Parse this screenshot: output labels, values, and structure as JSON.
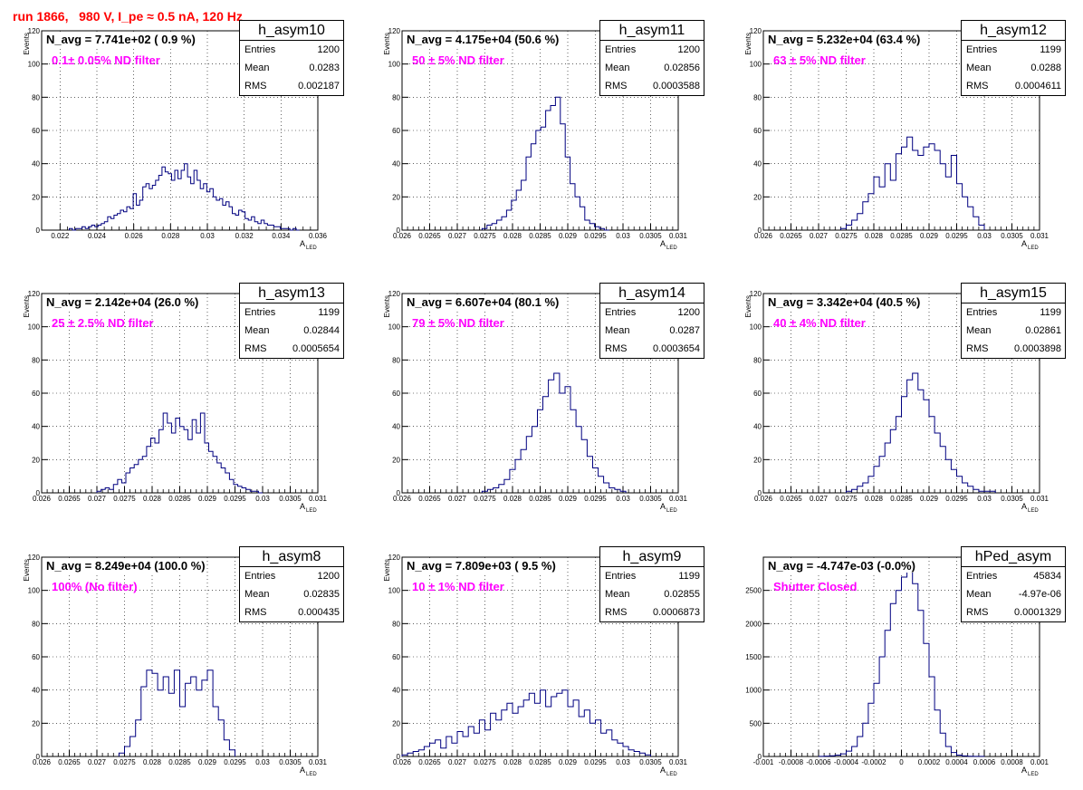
{
  "page_title": "run 1866,   980 V, I_pe ≈ 0.5 nA, 120 Hz",
  "colors": {
    "line": "#000080",
    "filter_text": "#ff00ff",
    "title_text": "#ff0000",
    "grid": "#000000"
  },
  "chart_data": [
    {
      "type": "bar",
      "hist": "h_asym10",
      "navg": "N_avg = 7.741e+02 ( 0.9 %)",
      "filter": "0.1± 0.05% ND filter",
      "entries": "1200",
      "mean": "0.0283",
      "rms": "0.002187",
      "xlim": [
        0.021,
        0.036
      ],
      "ylim": [
        0,
        120
      ],
      "xticks": [
        "0.022",
        "0.024",
        "0.026",
        "0.028",
        "0.03",
        "0.032",
        "0.034",
        "0.036"
      ],
      "yticks": [
        "20",
        "40",
        "60",
        "80",
        "100",
        "120"
      ],
      "xlabel": "A",
      "xlabel_sub": "LED",
      "ylabel": "Events",
      "bin_edges": [
        0.0225,
        0.035
      ],
      "counts": [
        1,
        0,
        1,
        1,
        2,
        1,
        2,
        3,
        2,
        3,
        4,
        5,
        8,
        7,
        9,
        10,
        12,
        11,
        14,
        13,
        22,
        15,
        18,
        26,
        28,
        25,
        27,
        30,
        33,
        38,
        35,
        34,
        30,
        36,
        31,
        36,
        40,
        32,
        28,
        36,
        30,
        25,
        28,
        23,
        25,
        20,
        18,
        19,
        15,
        17,
        14,
        10,
        9,
        12,
        11,
        7,
        6,
        8,
        5,
        4,
        6,
        4,
        3,
        3,
        2,
        2,
        1,
        1,
        1,
        0,
        1,
        0
      ]
    },
    {
      "type": "bar",
      "hist": "h_asym11",
      "navg": "N_avg = 4.175e+04 (50.6 %)",
      "filter": "50 ± 5% ND filter",
      "entries": "1200",
      "mean": "0.02856",
      "rms": "0.0003588",
      "xlim": [
        0.026,
        0.031
      ],
      "ylim": [
        0,
        120
      ],
      "xticks": [
        "0.026",
        "0.0265",
        "0.027",
        "0.0275",
        "0.028",
        "0.0285",
        "0.029",
        "0.0295",
        "0.03",
        "0.0305",
        "0.031"
      ],
      "yticks": [
        "20",
        "40",
        "60",
        "80",
        "100",
        "120"
      ],
      "xlabel": "A",
      "xlabel_sub": "LED",
      "ylabel": "Events",
      "bin_edges": [
        0.02745,
        0.02975
      ],
      "counts": [
        1,
        3,
        4,
        6,
        8,
        12,
        18,
        24,
        30,
        44,
        52,
        60,
        62,
        72,
        75,
        80,
        64,
        44,
        28,
        20,
        14,
        6,
        4,
        2,
        1,
        0
      ]
    },
    {
      "type": "bar",
      "hist": "h_asym12",
      "navg": "N_avg = 5.232e+04 (63.4 %)",
      "filter": "63 ± 5% ND filter",
      "entries": "1199",
      "mean": "0.0288",
      "rms": "0.0004611",
      "xlim": [
        0.026,
        0.031
      ],
      "ylim": [
        0,
        120
      ],
      "xticks": [
        "0.026",
        "0.0265",
        "0.027",
        "0.0275",
        "0.028",
        "0.0285",
        "0.029",
        "0.0295",
        "0.03",
        "0.0305",
        "0.031"
      ],
      "yticks": [
        "20",
        "40",
        "60",
        "80",
        "100",
        "120"
      ],
      "xlabel": "A",
      "xlabel_sub": "LED",
      "ylabel": "Events",
      "bin_edges": [
        0.0274,
        0.03
      ],
      "counts": [
        1,
        3,
        6,
        10,
        17,
        22,
        32,
        26,
        40,
        30,
        46,
        50,
        56,
        48,
        45,
        50,
        52,
        48,
        40,
        32,
        45,
        28,
        20,
        14,
        8,
        3
      ]
    },
    {
      "type": "bar",
      "hist": "h_asym13",
      "navg": "N_avg = 2.142e+04 (26.0 %)",
      "filter": "25 ± 2.5% ND filter",
      "entries": "1199",
      "mean": "0.02844",
      "rms": "0.0005654",
      "xlim": [
        0.026,
        0.031
      ],
      "ylim": [
        0,
        120
      ],
      "xticks": [
        "0.026",
        "0.0265",
        "0.027",
        "0.0275",
        "0.028",
        "0.0285",
        "0.029",
        "0.0295",
        "0.03",
        "0.0305",
        "0.031"
      ],
      "yticks": [
        "20",
        "40",
        "60",
        "80",
        "100",
        "120"
      ],
      "xlabel": "A",
      "xlabel_sub": "LED",
      "ylabel": "Events",
      "bin_edges": [
        0.027,
        0.03
      ],
      "counts": [
        1,
        2,
        3,
        2,
        5,
        8,
        6,
        12,
        15,
        17,
        20,
        22,
        28,
        33,
        30,
        38,
        48,
        42,
        36,
        45,
        40,
        38,
        32,
        44,
        36,
        48,
        30,
        25,
        22,
        18,
        15,
        12,
        8,
        5,
        4,
        3,
        2,
        1,
        1,
        0
      ]
    },
    {
      "type": "bar",
      "hist": "h_asym14",
      "navg": "N_avg = 6.607e+04 (80.1 %)",
      "filter": "79 ± 5% ND filter",
      "entries": "1200",
      "mean": "0.0287",
      "rms": "0.0003654",
      "xlim": [
        0.026,
        0.031
      ],
      "ylim": [
        0,
        120
      ],
      "xticks": [
        "0.026",
        "0.0265",
        "0.027",
        "0.0275",
        "0.028",
        "0.0285",
        "0.029",
        "0.0295",
        "0.03",
        "0.0305",
        "0.031"
      ],
      "yticks": [
        "20",
        "40",
        "60",
        "80",
        "100",
        "120"
      ],
      "xlabel": "A",
      "xlabel_sub": "LED",
      "ylabel": "Events",
      "bin_edges": [
        0.02745,
        0.03005
      ],
      "counts": [
        1,
        2,
        3,
        5,
        8,
        14,
        20,
        26,
        34,
        40,
        50,
        58,
        68,
        72,
        60,
        64,
        50,
        40,
        32,
        22,
        15,
        10,
        6,
        3,
        2,
        1
      ]
    },
    {
      "type": "bar",
      "hist": "h_asym15",
      "navg": "N_avg = 3.342e+04 (40.5 %)",
      "filter": "40 ± 4% ND filter",
      "entries": "1199",
      "mean": "0.02861",
      "rms": "0.0003898",
      "xlim": [
        0.026,
        0.031
      ],
      "ylim": [
        0,
        120
      ],
      "xticks": [
        "0.026",
        "0.0265",
        "0.027",
        "0.0275",
        "0.028",
        "0.0285",
        "0.029",
        "0.0295",
        "0.03",
        "0.0305",
        "0.031"
      ],
      "yticks": [
        "20",
        "40",
        "60",
        "80",
        "100",
        "120"
      ],
      "xlabel": "A",
      "xlabel_sub": "LED",
      "ylabel": "Events",
      "bin_edges": [
        0.0275,
        0.0302
      ],
      "counts": [
        1,
        2,
        4,
        6,
        10,
        16,
        22,
        30,
        38,
        46,
        58,
        68,
        72,
        62,
        56,
        46,
        36,
        28,
        20,
        14,
        10,
        6,
        4,
        2,
        1,
        1,
        1
      ]
    },
    {
      "type": "bar",
      "hist": "h_asym8",
      "navg": "N_avg = 8.249e+04 (100.0 %)",
      "filter": "100% (No filter)",
      "entries": "1200",
      "mean": "0.02835",
      "rms": "0.000435",
      "xlim": [
        0.026,
        0.031
      ],
      "ylim": [
        0,
        120
      ],
      "xticks": [
        "0.026",
        "0.0265",
        "0.027",
        "0.0275",
        "0.028",
        "0.0285",
        "0.029",
        "0.0295",
        "0.03",
        "0.0305",
        "0.031"
      ],
      "yticks": [
        "20",
        "40",
        "60",
        "80",
        "100",
        "120"
      ],
      "xlabel": "A",
      "xlabel_sub": "LED",
      "ylabel": "Events",
      "bin_edges": [
        0.0274,
        0.0295
      ],
      "counts": [
        2,
        6,
        12,
        22,
        42,
        52,
        50,
        40,
        48,
        38,
        52,
        30,
        44,
        48,
        40,
        46,
        52,
        30,
        22,
        10,
        4
      ]
    },
    {
      "type": "bar",
      "hist": "h_asym9",
      "navg": "N_avg = 7.809e+03 ( 9.5 %)",
      "filter": "10 ± 1% ND filter",
      "entries": "1199",
      "mean": "0.02855",
      "rms": "0.0006873",
      "xlim": [
        0.026,
        0.031
      ],
      "ylim": [
        0,
        120
      ],
      "xticks": [
        "0.026",
        "0.0265",
        "0.027",
        "0.0275",
        "0.028",
        "0.0285",
        "0.029",
        "0.0295",
        "0.03",
        "0.0305",
        "0.031"
      ],
      "yticks": [
        "20",
        "40",
        "60",
        "80",
        "100",
        "120"
      ],
      "xlabel": "A",
      "xlabel_sub": "LED",
      "ylabel": "Events",
      "bin_edges": [
        0.026,
        0.0305
      ],
      "counts": [
        1,
        2,
        3,
        4,
        6,
        8,
        10,
        5,
        12,
        8,
        15,
        12,
        18,
        14,
        22,
        16,
        26,
        22,
        28,
        32,
        26,
        30,
        34,
        38,
        32,
        40,
        30,
        36,
        38,
        40,
        30,
        34,
        24,
        28,
        20,
        22,
        14,
        16,
        10,
        8,
        6,
        4,
        3,
        2,
        1
      ]
    },
    {
      "type": "bar",
      "hist": "hPed_asym",
      "navg": "N_avg = -4.747e-03 (-0.0%)",
      "filter": "Shutter Closed",
      "entries": "45834",
      "mean": "-4.97e-06",
      "rms": "0.0001329",
      "xlim": [
        -0.001,
        0.001
      ],
      "ylim": [
        0,
        3000
      ],
      "xticks": [
        "-0.001",
        "-0.0008",
        "-0.0006",
        "-0.0004",
        "-0.0002",
        "0",
        "0.0002",
        "0.0004",
        "0.0006",
        "0.0008",
        "0.001"
      ],
      "yticks": [
        "500",
        "1000",
        "1500",
        "2000",
        "2500"
      ],
      "xlabel": "A",
      "xlabel_sub": "LED",
      "ylabel": "",
      "bin_edges": [
        -0.0006,
        0.0006
      ],
      "counts": [
        2,
        5,
        10,
        20,
        40,
        80,
        150,
        300,
        500,
        800,
        1100,
        1500,
        1900,
        2300,
        2500,
        2700,
        2900,
        2600,
        2200,
        1700,
        1200,
        700,
        350,
        150,
        60,
        20,
        8,
        3,
        1,
        1
      ]
    }
  ]
}
